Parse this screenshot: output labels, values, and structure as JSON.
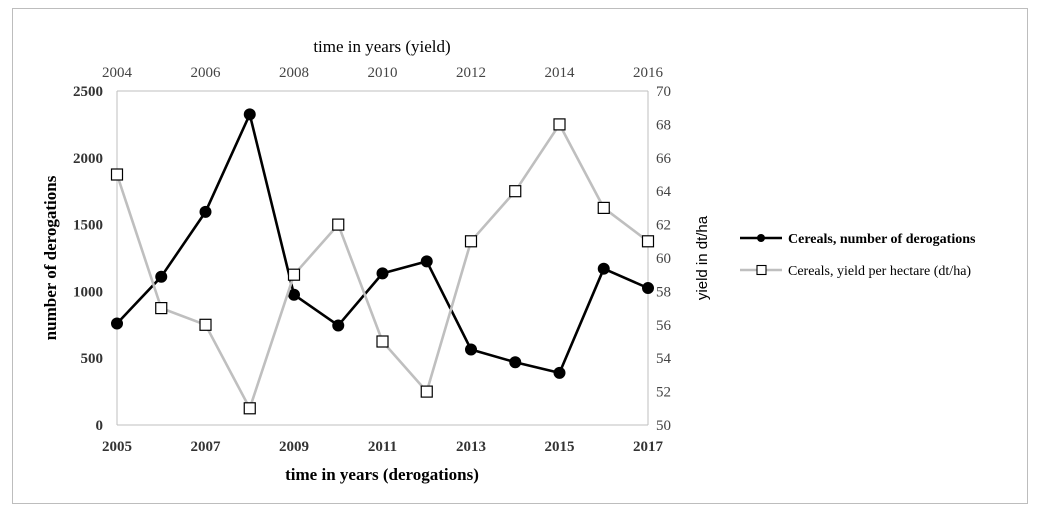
{
  "chart_data": {
    "type": "line",
    "xlabel_bottom": "time in years (derogations)",
    "xlabel_top": "time in years (yield)",
    "ylabel_left": "number of derogations",
    "ylabel_right": "yield in dt/ha",
    "x_bottom": {
      "range": [
        2005,
        2017
      ],
      "ticks": [
        "2005",
        "2007",
        "2009",
        "2011",
        "2013",
        "2015",
        "2017"
      ]
    },
    "x_top": {
      "range": [
        2004,
        2016
      ],
      "ticks": [
        "2004",
        "2006",
        "2008",
        "2010",
        "2012",
        "2014",
        "2016"
      ]
    },
    "y_left": {
      "range": [
        0,
        2500
      ],
      "ticks": [
        "0",
        "500",
        "1000",
        "1500",
        "2000",
        "2500"
      ]
    },
    "y_right": {
      "range": [
        50,
        70
      ],
      "ticks": [
        "50",
        "52",
        "54",
        "56",
        "58",
        "60",
        "62",
        "64",
        "66",
        "68",
        "70"
      ]
    },
    "series": [
      {
        "name": "Cereals, number of derogations",
        "axis": "left",
        "color": "#000000",
        "marker": "filled-circle",
        "x": [
          2005,
          2006,
          2007,
          2008,
          2009,
          2010,
          2011,
          2012,
          2013,
          2014,
          2015,
          2016,
          2017
        ],
        "y": [
          760,
          1110,
          1595,
          2325,
          975,
          745,
          1135,
          1225,
          565,
          470,
          390,
          1170,
          1025
        ]
      },
      {
        "name": "Cereals, yield per hectare (dt/ha)",
        "axis": "right",
        "color": "#bfbfbf",
        "marker": "open-square",
        "x": [
          2004,
          2005,
          2006,
          2007,
          2008,
          2009,
          2010,
          2011,
          2012,
          2013,
          2014,
          2015,
          2016
        ],
        "y": [
          65,
          57,
          56,
          51,
          59,
          62,
          55,
          52,
          61,
          64,
          68,
          63,
          61
        ]
      }
    ],
    "legend_position": "right",
    "grid": false
  }
}
